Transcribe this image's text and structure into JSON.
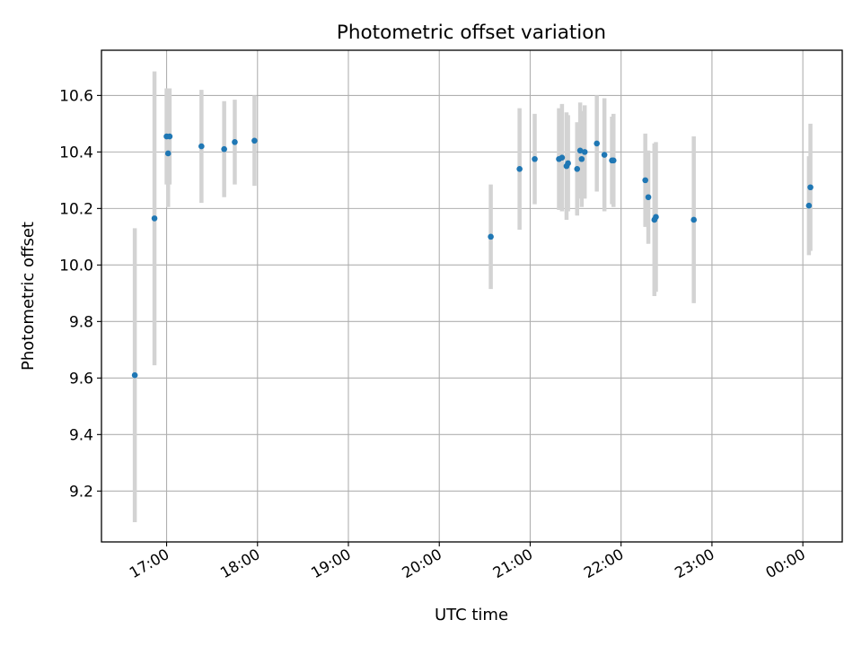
{
  "chart_data": {
    "type": "scatter",
    "title": "Photometric offset variation",
    "xlabel": "UTC time",
    "ylabel": "Photometric offset",
    "x_ticks": [
      "17:00",
      "18:00",
      "19:00",
      "20:00",
      "21:00",
      "22:00",
      "23:00",
      "00:00"
    ],
    "y_ticks": [
      "9.2",
      "9.4",
      "9.6",
      "9.8",
      "10.0",
      "10.2",
      "10.4",
      "10.6"
    ],
    "xlim": [
      "16:17",
      "00:26"
    ],
    "ylim": [
      9.02,
      10.76
    ],
    "grid": true,
    "errorbar_color": "#d3d3d3",
    "point_color": "#1f77b4",
    "points": [
      {
        "x": "16:39",
        "y": 9.61,
        "err": 0.52
      },
      {
        "x": "16:52",
        "y": 10.165,
        "err": 0.52
      },
      {
        "x": "17:00",
        "y": 10.455,
        "err": 0.17
      },
      {
        "x": "17:01",
        "y": 10.395,
        "err": 0.19
      },
      {
        "x": "17:02",
        "y": 10.455,
        "err": 0.17
      },
      {
        "x": "17:23",
        "y": 10.42,
        "err": 0.2
      },
      {
        "x": "17:38",
        "y": 10.41,
        "err": 0.17
      },
      {
        "x": "17:45",
        "y": 10.435,
        "err": 0.15
      },
      {
        "x": "17:58",
        "y": 10.44,
        "err": 0.16
      },
      {
        "x": "20:34",
        "y": 10.1,
        "err": 0.185
      },
      {
        "x": "20:53",
        "y": 10.34,
        "err": 0.215
      },
      {
        "x": "21:03",
        "y": 10.375,
        "err": 0.16
      },
      {
        "x": "21:19",
        "y": 10.375,
        "err": 0.18
      },
      {
        "x": "21:21",
        "y": 10.38,
        "err": 0.19
      },
      {
        "x": "21:24",
        "y": 10.35,
        "err": 0.19
      },
      {
        "x": "21:25",
        "y": 10.36,
        "err": 0.17
      },
      {
        "x": "21:31",
        "y": 10.34,
        "err": 0.165
      },
      {
        "x": "21:33",
        "y": 10.405,
        "err": 0.17
      },
      {
        "x": "21:34",
        "y": 10.375,
        "err": 0.17
      },
      {
        "x": "21:36",
        "y": 10.4,
        "err": 0.165
      },
      {
        "x": "21:44",
        "y": 10.43,
        "err": 0.17
      },
      {
        "x": "21:49",
        "y": 10.39,
        "err": 0.2
      },
      {
        "x": "21:54",
        "y": 10.37,
        "err": 0.155
      },
      {
        "x": "21:55",
        "y": 10.37,
        "err": 0.165
      },
      {
        "x": "22:16",
        "y": 10.3,
        "err": 0.165
      },
      {
        "x": "22:18",
        "y": 10.24,
        "err": 0.165
      },
      {
        "x": "22:22",
        "y": 10.16,
        "err": 0.27
      },
      {
        "x": "22:23",
        "y": 10.17,
        "err": 0.265
      },
      {
        "x": "22:48",
        "y": 10.16,
        "err": 0.295
      },
      {
        "x": "00:04",
        "y": 10.21,
        "err": 0.175
      },
      {
        "x": "00:05",
        "y": 10.275,
        "err": 0.225
      }
    ]
  }
}
